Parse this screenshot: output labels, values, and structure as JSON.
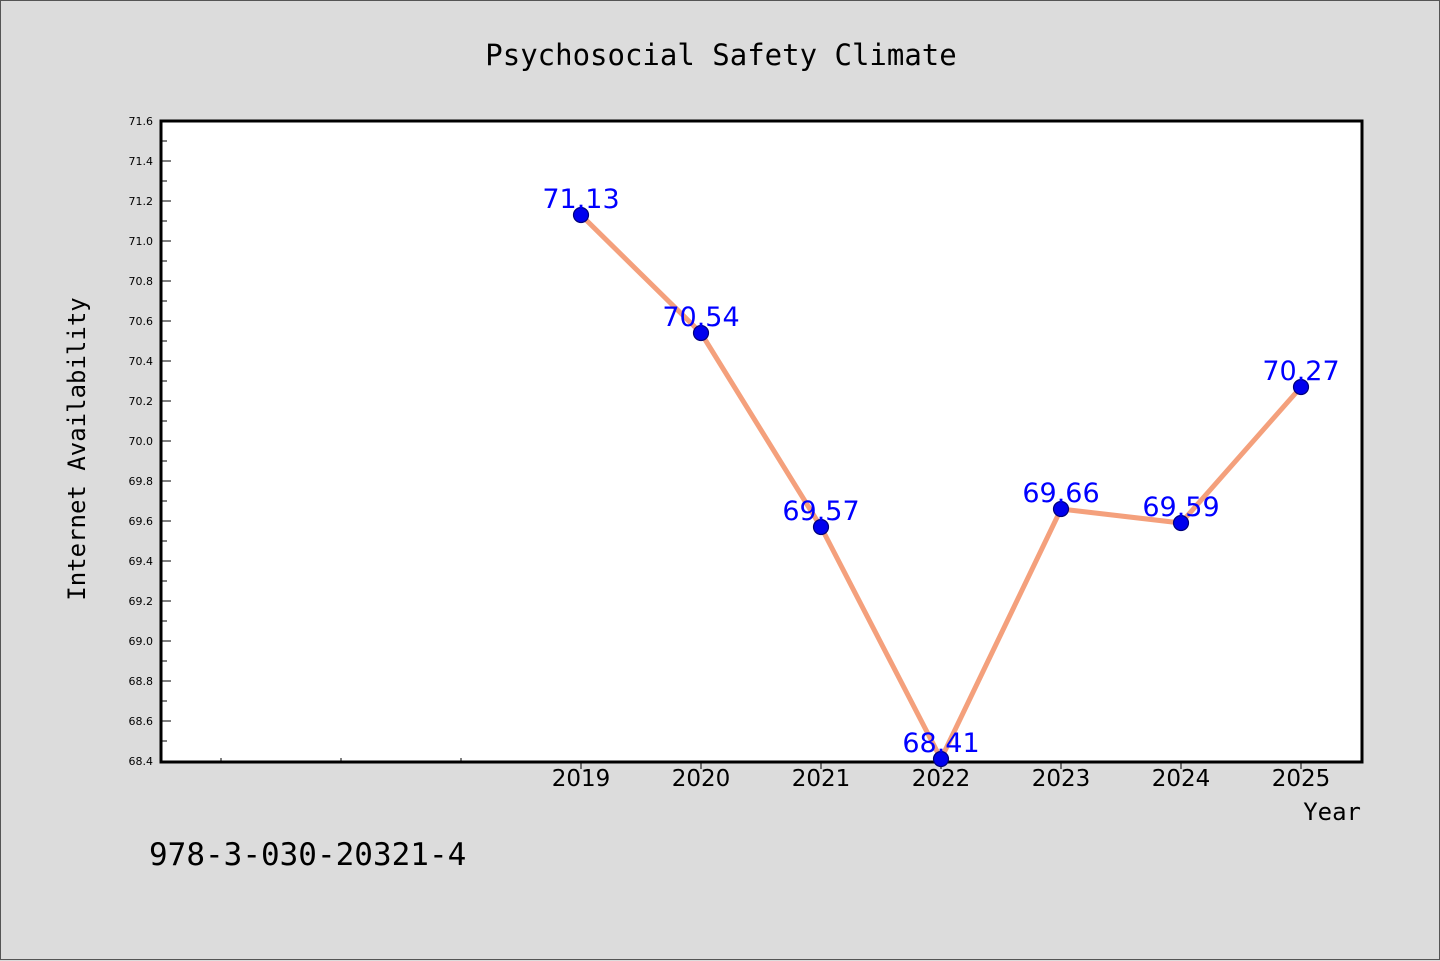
{
  "chart_data": {
    "type": "line",
    "title": "Psychosocial Safety Climate",
    "xlabel": "Year",
    "ylabel": "Internet Availability",
    "x": [
      "2019",
      "2020",
      "2021",
      "2022",
      "2023",
      "2024",
      "2025"
    ],
    "series": [
      {
        "values": [
          71.13,
          70.54,
          69.57,
          68.41,
          69.66,
          69.59,
          70.27
        ],
        "labels": [
          "71.13",
          "70.54",
          "69.57",
          "68.41",
          "69.66",
          "69.59",
          "70.27"
        ]
      }
    ],
    "ylim": [
      68.4,
      71.6
    ],
    "yticks": [
      "68.4",
      "68.6",
      "68.8",
      "69.0",
      "69.2",
      "69.4",
      "69.6",
      "69.8",
      "70.0",
      "70.2",
      "70.4",
      "70.6",
      "70.8",
      "71.0",
      "71.2",
      "71.4",
      "71.6"
    ],
    "grid": false,
    "legend": "none",
    "colors": {
      "line": "#f4a07c",
      "marker": "#0000ee",
      "data_label": "#0000ff",
      "plot_background": "#ffffff",
      "figure_background": "#dcdcdc"
    }
  },
  "footer": {
    "isbn": "978-3-030-20321-4"
  }
}
